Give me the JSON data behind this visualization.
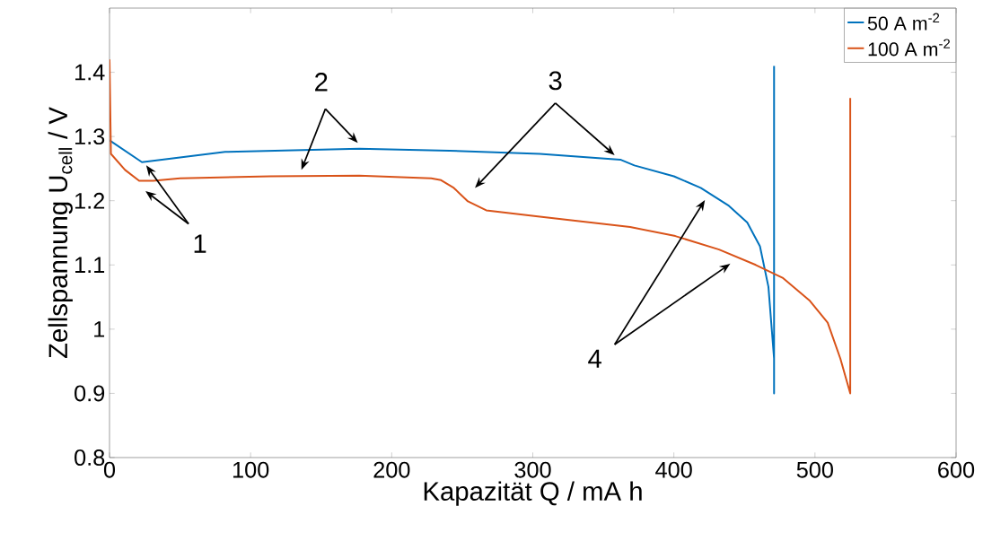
{
  "chart_data": {
    "type": "line",
    "xlabel": "Kapazität Q / mA h",
    "ylabel": "Zellspannung U$_{cell}$ / V",
    "xlim": [
      0,
      600
    ],
    "xticks": [
      0,
      100,
      200,
      300,
      400,
      500,
      600
    ],
    "ylim": [
      0.8,
      1.5
    ],
    "yticks": [
      0.8,
      0.9,
      1,
      1.1,
      1.2,
      1.3,
      1.4
    ],
    "legend": "top right",
    "grid": false,
    "annotations": [
      "1",
      "2",
      "3",
      "4"
    ],
    "series": [
      {
        "name": "50 A m$^{-2}$",
        "color": "#0072bd",
        "x": [
          0,
          23,
          82,
          177,
          241,
          305,
          362,
          372,
          400,
          419,
          439,
          452,
          461,
          467,
          471,
          471,
          471
        ],
        "values": [
          1.294,
          1.26,
          1.276,
          1.281,
          1.278,
          1.273,
          1.264,
          1.255,
          1.238,
          1.22,
          1.192,
          1.166,
          1.129,
          1.066,
          0.954,
          0.9,
          1.41
        ]
      },
      {
        "name": "100 A m$^{-2}$",
        "color": "#d95319",
        "x": [
          0,
          1,
          11,
          21,
          31,
          50,
          114,
          177,
          228,
          235,
          244,
          254,
          267,
          305,
          369,
          401,
          432,
          458,
          477,
          496,
          509,
          518,
          525,
          525
        ],
        "values": [
          1.42,
          1.273,
          1.248,
          1.231,
          1.231,
          1.235,
          1.238,
          1.239,
          1.235,
          1.232,
          1.22,
          1.199,
          1.185,
          1.175,
          1.159,
          1.145,
          1.124,
          1.1,
          1.08,
          1.045,
          1.01,
          0.954,
          0.9,
          1.36
        ]
      }
    ]
  }
}
